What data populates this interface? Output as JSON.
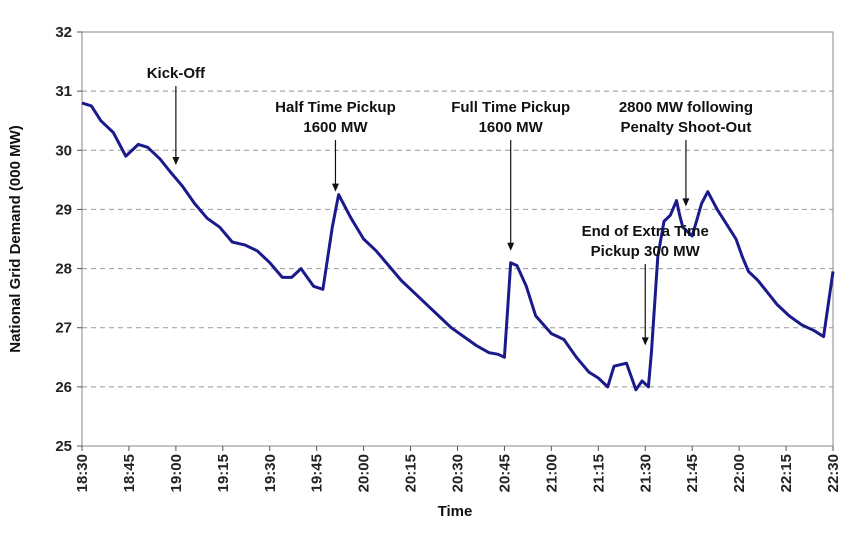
{
  "chart_data": {
    "type": "line",
    "title": "",
    "xlabel": "Time",
    "ylabel": "National Grid Demand (000 MW)",
    "ylim": [
      25,
      32
    ],
    "yticks": [
      25,
      26,
      27,
      28,
      29,
      30,
      31,
      32
    ],
    "xlim": [
      "18:30",
      "22:30"
    ],
    "xticks": [
      "18:30",
      "18:45",
      "19:00",
      "19:15",
      "19:30",
      "19:45",
      "20:00",
      "20:15",
      "20:30",
      "20:45",
      "21:00",
      "21:15",
      "21:30",
      "21:45",
      "22:00",
      "22:15",
      "22:30"
    ],
    "grid": "horizontal dashed",
    "line_color": "#1a1a8c",
    "series": [
      {
        "name": "",
        "x": [
          "18:30",
          "18:33",
          "18:36",
          "18:40",
          "18:44",
          "18:48",
          "18:51",
          "18:55",
          "18:58",
          "19:02",
          "19:06",
          "19:10",
          "19:14",
          "19:18",
          "19:22",
          "19:26",
          "19:30",
          "19:34",
          "19:37",
          "19:40",
          "19:44",
          "19:47",
          "19:50",
          "19:52",
          "19:56",
          "20:00",
          "20:04",
          "20:08",
          "20:12",
          "20:16",
          "20:20",
          "20:24",
          "20:28",
          "20:32",
          "20:36",
          "20:40",
          "20:43",
          "20:45",
          "20:46",
          "20:47",
          "20:49",
          "20:52",
          "20:55",
          "21:00",
          "21:04",
          "21:08",
          "21:12",
          "21:15",
          "21:18",
          "21:20",
          "21:24",
          "21:27",
          "21:29",
          "21:31",
          "21:32",
          "21:34",
          "21:36",
          "21:38",
          "21:40",
          "21:41",
          "21:42",
          "21:45",
          "21:48",
          "21:50",
          "21:53",
          "21:56",
          "21:59",
          "22:01",
          "22:03",
          "22:06",
          "22:09",
          "22:12",
          "22:16",
          "22:20",
          "22:24",
          "22:27",
          "22:30"
        ],
        "values": [
          30.8,
          30.75,
          30.5,
          30.3,
          29.9,
          30.1,
          30.05,
          29.85,
          29.65,
          29.4,
          29.1,
          28.85,
          28.7,
          28.45,
          28.4,
          28.3,
          28.1,
          27.85,
          27.85,
          28.0,
          27.7,
          27.65,
          28.7,
          29.25,
          28.85,
          28.5,
          28.3,
          28.05,
          27.8,
          27.6,
          27.4,
          27.2,
          27.0,
          26.85,
          26.7,
          26.58,
          26.55,
          26.5,
          27.3,
          28.1,
          28.05,
          27.7,
          27.2,
          26.9,
          26.8,
          26.5,
          26.25,
          26.15,
          26.0,
          26.35,
          26.4,
          25.95,
          26.1,
          26.0,
          26.6,
          28.2,
          28.8,
          28.9,
          29.15,
          28.9,
          28.7,
          28.55,
          29.1,
          29.3,
          29.0,
          28.75,
          28.5,
          28.2,
          27.95,
          27.8,
          27.6,
          27.4,
          27.2,
          27.05,
          26.95,
          26.85,
          27.95
        ]
      }
    ],
    "annotations": [
      {
        "lines": [
          "Kick-Off"
        ],
        "target_x": "19:00",
        "target_y": 29.65
      },
      {
        "lines": [
          "Half Time Pickup",
          "1600 MW"
        ],
        "target_x": "19:51",
        "target_y": 29.2
      },
      {
        "lines": [
          "Full Time Pickup",
          "1600 MW"
        ],
        "target_x": "20:47",
        "target_y": 28.2
      },
      {
        "lines": [
          "End of Extra Time",
          "Pickup 300 MW"
        ],
        "target_x": "21:30",
        "target_y": 26.6
      },
      {
        "lines": [
          "2800 MW following",
          "Penalty Shoot-Out"
        ],
        "target_x": "21:43",
        "target_y": 28.95
      }
    ]
  }
}
